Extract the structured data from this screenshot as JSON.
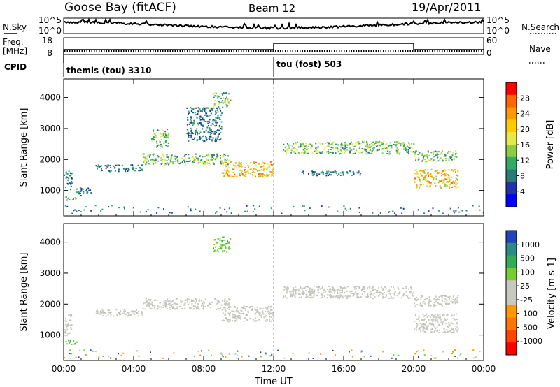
{
  "header": {
    "title": "Goose Bay (fitACF)",
    "beam": "Beam 12",
    "date": "19/Apr/2011"
  },
  "noise_panel": {
    "left_label": "N.Sky",
    "right_label": "N.Search",
    "left_ticks": [
      "10^5",
      "10^0"
    ],
    "right_ticks": [
      "10^5",
      "10^0"
    ]
  },
  "freq_panel": {
    "left_label_line1": "Freq.",
    "left_label_line2": "[MHz]",
    "right_label": "Nave",
    "left_ticks": [
      "18",
      "8"
    ],
    "right_ticks": [
      "60",
      "0"
    ]
  },
  "cpid": {
    "label": "CPID",
    "modes": [
      {
        "name": "themis (tou) 3310",
        "start_hour": 0
      },
      {
        "name": "tou (fost) 503",
        "start_hour": 12
      }
    ]
  },
  "chart_data": [
    {
      "type": "heatmap",
      "xlabel": "Time UT",
      "ylabel": "Slant Range [km]",
      "xlim": [
        0,
        24
      ],
      "ylim": [
        180,
        4600
      ],
      "x_ticks": [
        "00:00",
        "04:00",
        "08:00",
        "12:00",
        "16:00",
        "20:00",
        "00:00"
      ],
      "y_ticks": [
        "1000",
        "2000",
        "3000",
        "4000"
      ],
      "colorbar": {
        "label": "Power [dB]",
        "ticks": [
          "28",
          "24",
          "20",
          "16",
          "12",
          "8",
          "4"
        ],
        "colors": [
          "#ff0000",
          "#ff6600",
          "#ff9900",
          "#ffcc00",
          "#e8e84a",
          "#8ccc44",
          "#33aa66",
          "#2a7a7a",
          "#2233aa",
          "#0000ff"
        ]
      },
      "regions": [
        {
          "t": [
            0.0,
            0.45
          ],
          "r": [
            1050,
            1700
          ],
          "level": "low"
        },
        {
          "t": [
            0.1,
            0.75
          ],
          "r": [
            700,
            850
          ],
          "level": "mid"
        },
        {
          "t": [
            0.6,
            1.6
          ],
          "r": [
            850,
            1100
          ],
          "level": "low"
        },
        {
          "t": [
            1.8,
            4.5
          ],
          "r": [
            1620,
            1850
          ],
          "level": "low"
        },
        {
          "t": [
            4.5,
            9.5
          ],
          "r": [
            1850,
            2200
          ],
          "level": "mid"
        },
        {
          "t": [
            5.0,
            6.0
          ],
          "r": [
            2400,
            3000
          ],
          "level": "mid"
        },
        {
          "t": [
            7.0,
            9.0
          ],
          "r": [
            2600,
            3700
          ],
          "level": "low"
        },
        {
          "t": [
            8.5,
            9.5
          ],
          "r": [
            3700,
            4200
          ],
          "level": "mid"
        },
        {
          "t": [
            9.0,
            12.0
          ],
          "r": [
            1450,
            1950
          ],
          "level": "high"
        },
        {
          "t": [
            12.5,
            20.0
          ],
          "r": [
            2200,
            2600
          ],
          "level": "mid"
        },
        {
          "t": [
            13.5,
            17.0
          ],
          "r": [
            1500,
            1650
          ],
          "level": "low"
        },
        {
          "t": [
            20.0,
            22.5
          ],
          "r": [
            1100,
            1700
          ],
          "level": "high"
        },
        {
          "t": [
            20.0,
            22.5
          ],
          "r": [
            1950,
            2300
          ],
          "level": "mid"
        }
      ]
    },
    {
      "type": "heatmap",
      "xlabel": "Time UT",
      "ylabel": "Slant Range [km]",
      "xlim": [
        0,
        24
      ],
      "ylim": [
        180,
        4600
      ],
      "x_ticks": [
        "00:00",
        "04:00",
        "08:00",
        "12:00",
        "16:00",
        "20:00",
        "00:00"
      ],
      "y_ticks": [
        "1000",
        "2000",
        "3000",
        "4000"
      ],
      "colorbar": {
        "label": "Velocity [m s-1]",
        "ticks": [
          "1000",
          "500",
          "100",
          "25",
          "-25",
          "-100",
          "-500",
          "-1000"
        ],
        "colors": [
          "#2244bb",
          "#2a8a88",
          "#33aa55",
          "#77cc33",
          "#c8c8c0",
          "#c8c8c0",
          "#ff9900",
          "#ff7700",
          "#ff4400",
          "#ff0000"
        ]
      },
      "regions": [
        {
          "t": [
            0.0,
            0.45
          ],
          "r": [
            1050,
            1700
          ],
          "level": "ground"
        },
        {
          "t": [
            0.1,
            0.75
          ],
          "r": [
            700,
            850
          ],
          "level": "positive"
        },
        {
          "t": [
            1.8,
            4.5
          ],
          "r": [
            1620,
            1850
          ],
          "level": "ground"
        },
        {
          "t": [
            4.5,
            9.5
          ],
          "r": [
            1850,
            2200
          ],
          "level": "ground"
        },
        {
          "t": [
            8.5,
            9.5
          ],
          "r": [
            3700,
            4200
          ],
          "level": "positive"
        },
        {
          "t": [
            9.0,
            12.0
          ],
          "r": [
            1450,
            1950
          ],
          "level": "ground"
        },
        {
          "t": [
            12.5,
            20.0
          ],
          "r": [
            2200,
            2600
          ],
          "level": "ground"
        },
        {
          "t": [
            20.0,
            22.5
          ],
          "r": [
            1100,
            1700
          ],
          "level": "ground"
        },
        {
          "t": [
            20.0,
            22.5
          ],
          "r": [
            1950,
            2300
          ],
          "level": "ground"
        }
      ]
    }
  ]
}
